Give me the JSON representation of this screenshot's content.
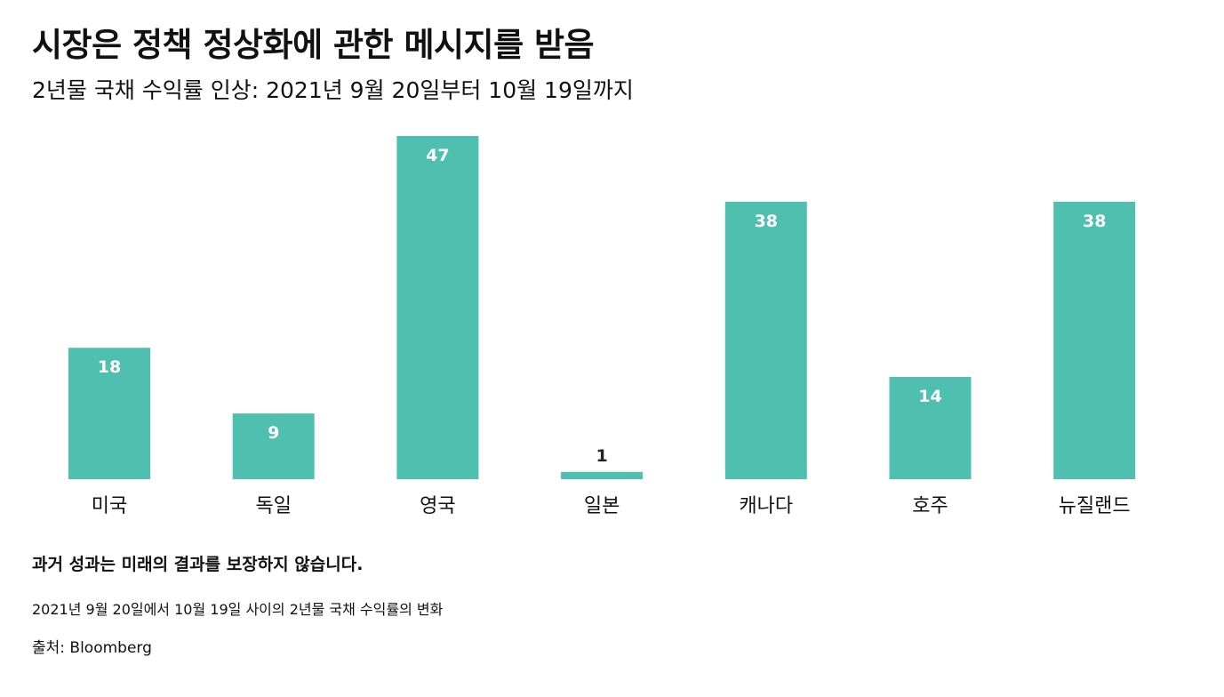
{
  "header": {
    "title": "시장은 정책 정상화에 관한 메시지를 받음",
    "subtitle": "2년물 국채 수익률 인상: 2021년 9월 20일부터 10월 19일까지"
  },
  "chart_data": {
    "type": "bar",
    "categories": [
      "미국",
      "독일",
      "영국",
      "일본",
      "캐나다",
      "호주",
      "뉴질랜드"
    ],
    "values": [
      18,
      9,
      47,
      1,
      38,
      14,
      38
    ],
    "title": "시장은 정책 정상화에 관한 메시지를 받음",
    "subtitle": "2년물 국채 수익률 인상: 2021년 9월 20일부터 10월 19일까지",
    "xlabel": "",
    "ylabel": "",
    "ylim": [
      0,
      47
    ],
    "grid": false,
    "data_labels": true,
    "bar_color": "#4fbfb0",
    "label_inside_color": "#ffffff",
    "label_outside_color": "#222222"
  },
  "footer": {
    "note": "과거 성과는 미래의 결과를 보장하지 않습니다.",
    "description": "2021년 9월 20일에서 10월 19일 사이의 2년물 국채 수익률의 변화",
    "source": "출처: Bloomberg"
  }
}
